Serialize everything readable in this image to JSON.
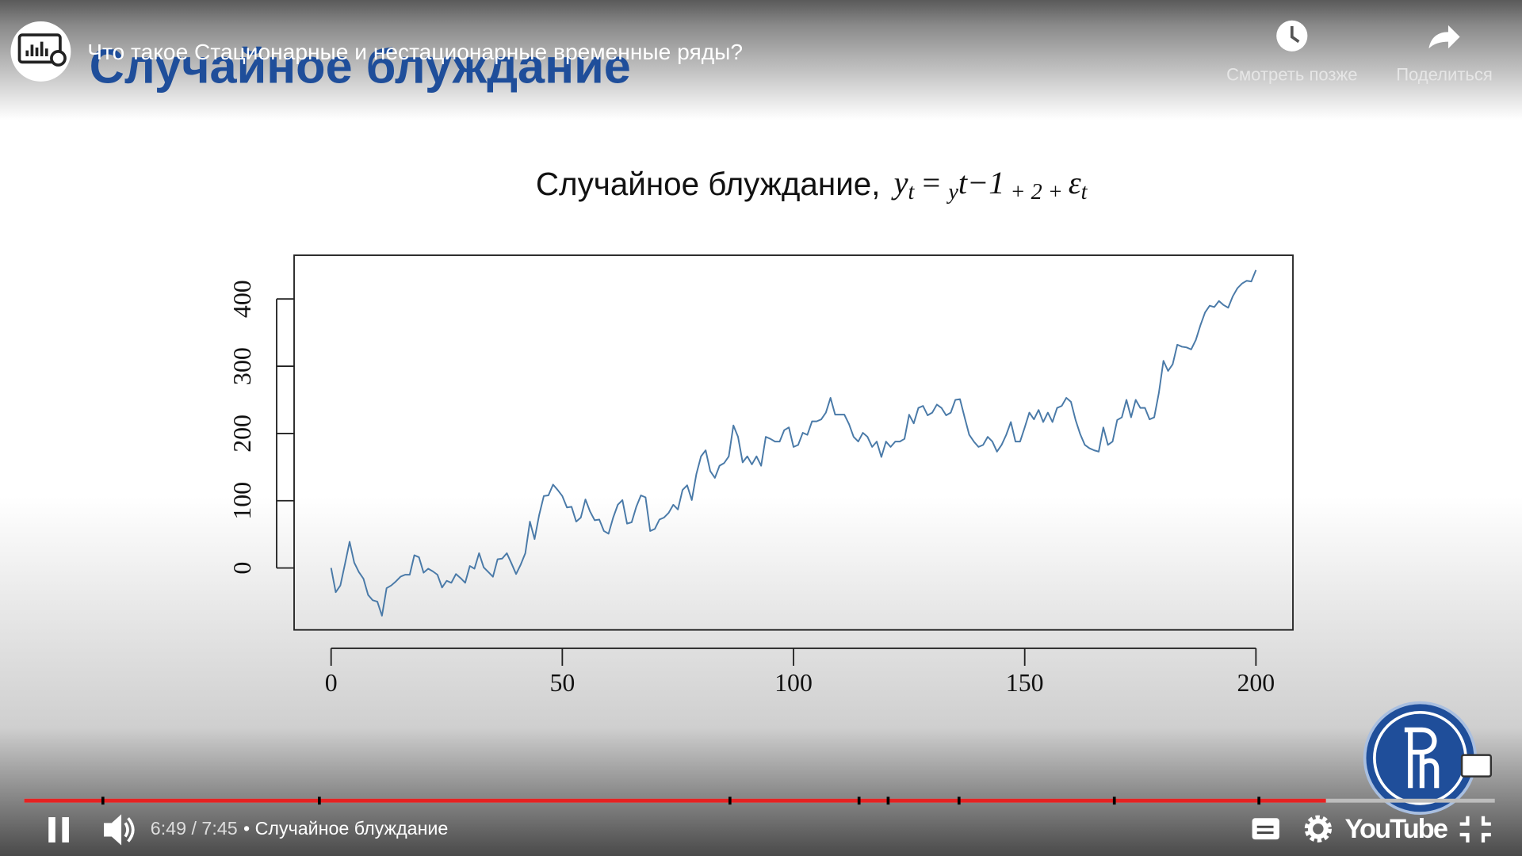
{
  "header": {
    "video_title": "Что такое Стационарные и нестационарные временные ряды?",
    "watch_later": "Смотреть позже",
    "share": "Поделиться"
  },
  "slide": {
    "heading": "Случайное блуждание"
  },
  "chart_data": {
    "type": "line",
    "title": "Случайное блуждание,",
    "formula": [
      "y",
      "t",
      " = ",
      "y",
      "t−1",
      " + 2 + ",
      "ε",
      "t"
    ],
    "color": "#4a7aa8",
    "x": [
      0,
      1,
      2,
      3,
      4,
      5,
      6,
      7,
      8,
      9,
      10,
      11,
      12,
      13,
      14,
      15,
      16,
      17,
      18,
      19,
      20,
      21,
      22,
      23,
      24,
      25,
      26,
      27,
      28,
      29,
      30,
      31,
      32,
      33,
      34,
      35,
      36,
      37,
      38,
      39,
      40,
      41,
      42,
      43,
      44,
      45,
      46,
      47,
      48,
      49,
      50,
      51,
      52,
      53,
      54,
      55,
      56,
      57,
      58,
      59,
      60,
      61,
      62,
      63,
      64,
      65,
      66,
      67,
      68,
      69,
      70,
      71,
      72,
      73,
      74,
      75,
      76,
      77,
      78,
      79,
      80,
      81,
      82,
      83,
      84,
      85,
      86,
      87,
      88,
      89,
      90,
      91,
      92,
      93,
      94,
      95,
      96,
      97,
      98,
      99,
      100,
      101,
      102,
      103,
      104,
      105,
      106,
      107,
      108,
      109,
      110,
      111,
      112,
      113,
      114,
      115,
      116,
      117,
      118,
      119,
      120,
      121,
      122,
      123,
      124,
      125,
      126,
      127,
      128,
      129,
      130,
      131,
      132,
      133,
      134,
      135,
      136,
      137,
      138,
      139,
      140,
      141,
      142,
      143,
      144,
      145,
      146,
      147,
      148,
      149,
      150,
      151,
      152,
      153,
      154,
      155,
      156,
      157,
      158,
      159,
      160,
      161,
      162,
      163,
      164,
      165,
      166,
      167,
      168,
      169,
      170,
      171,
      172,
      173,
      174,
      175,
      176,
      177,
      178,
      179,
      180,
      181,
      182,
      183,
      184,
      185,
      186,
      187,
      188,
      189,
      190,
      191,
      192,
      193,
      194,
      195,
      196,
      197,
      198,
      199,
      200
    ],
    "values": [
      0,
      -36,
      -26,
      6,
      39,
      8,
      -6,
      -16,
      -40,
      -48,
      -50,
      -71,
      -30,
      -26,
      -20,
      -13,
      -10,
      -10,
      19,
      16,
      -7,
      -1,
      -5,
      -10,
      -29,
      -19,
      -22,
      -9,
      -15,
      -22,
      3,
      -1,
      22,
      1,
      -6,
      -13,
      13,
      14,
      22,
      7,
      -9,
      5,
      22,
      69,
      43,
      79,
      107,
      108,
      124,
      116,
      107,
      90,
      91,
      69,
      75,
      102,
      84,
      71,
      72,
      55,
      51,
      75,
      94,
      101,
      66,
      68,
      91,
      108,
      105,
      55,
      58,
      72,
      75,
      82,
      94,
      87,
      116,
      123,
      101,
      140,
      166,
      175,
      144,
      134,
      152,
      156,
      166,
      212,
      195,
      157,
      166,
      154,
      166,
      152,
      195,
      192,
      188,
      188,
      205,
      209,
      180,
      183,
      201,
      198,
      218,
      218,
      221,
      231,
      253,
      228,
      228,
      228,
      214,
      195,
      188,
      201,
      195,
      180,
      188,
      165,
      188,
      180,
      188,
      188,
      192,
      228,
      215,
      238,
      241,
      227,
      231,
      243,
      238,
      227,
      231,
      250,
      251,
      224,
      198,
      188,
      180,
      183,
      195,
      188,
      173,
      183,
      198,
      217,
      188,
      188,
      209,
      231,
      221,
      235,
      217,
      231,
      217,
      238,
      241,
      253,
      247,
      220,
      199,
      183,
      178,
      175,
      173,
      209,
      183,
      188,
      220,
      224,
      250,
      224,
      250,
      238,
      238,
      221,
      224,
      260,
      308,
      293,
      303,
      332,
      329,
      328,
      325,
      339,
      361,
      380,
      390,
      388,
      397,
      391,
      387,
      404,
      416,
      423,
      427,
      426,
      443
    ],
    "xlim": [
      -8,
      208
    ],
    "ylim": [
      -92,
      465
    ],
    "xticks": [
      0,
      50,
      100,
      150,
      200
    ],
    "yticks": [
      0,
      100,
      200,
      300,
      400
    ]
  },
  "controls": {
    "time": "6:49 / 7:45",
    "chapter": "• Случайное блуждание",
    "brand": "YouTube"
  }
}
